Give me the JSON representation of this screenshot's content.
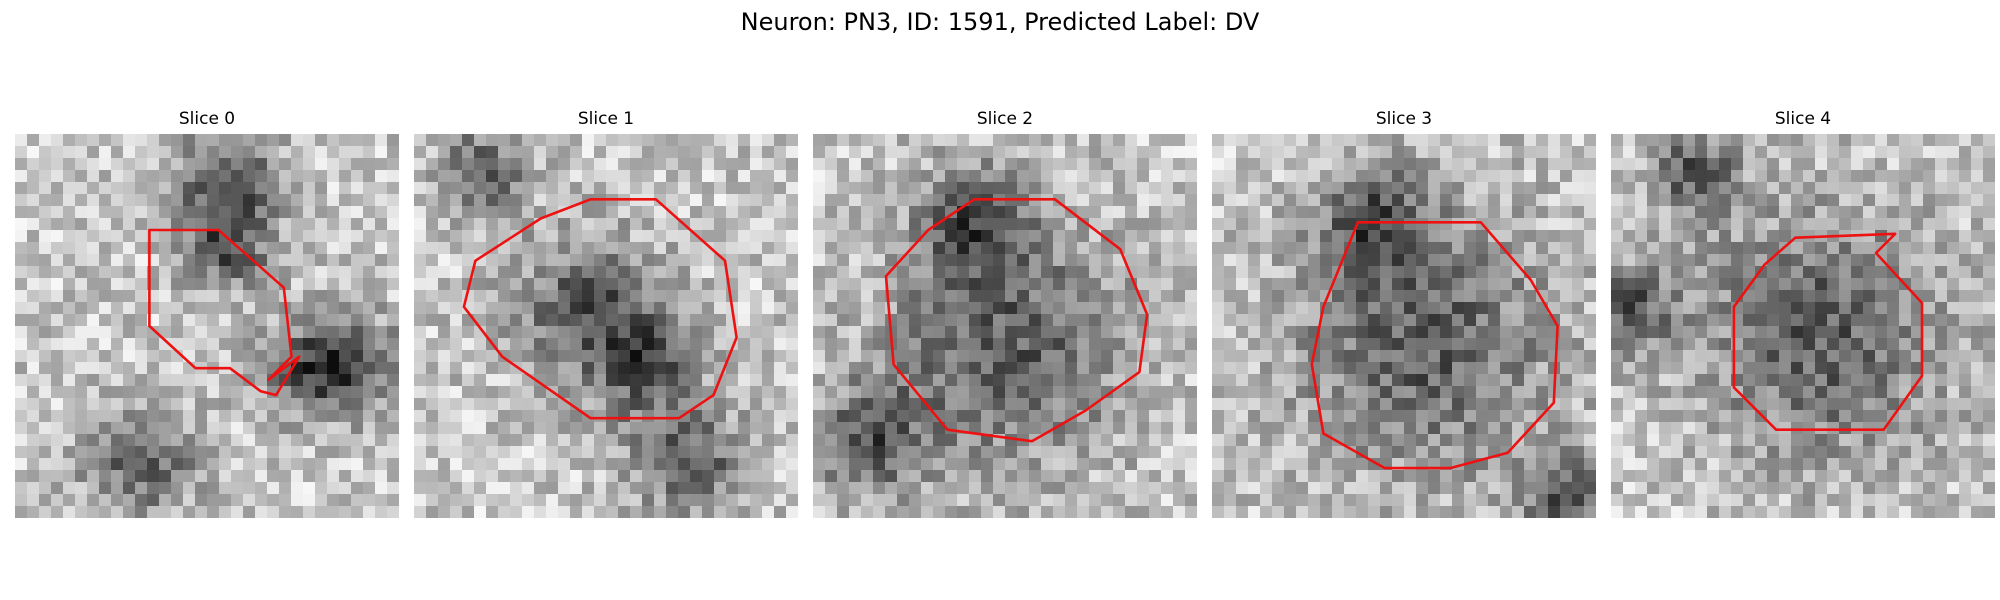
{
  "figure": {
    "title": "Neuron: PN3, ID: 1591, Predicted Label: DV"
  },
  "panels": [
    {
      "title": "Slice 0",
      "seed": 11,
      "darkness": [
        [
          0.55,
          0.12,
          0.1
        ],
        [
          0.55,
          0.3,
          0.08
        ],
        [
          0.33,
          0.85,
          0.1
        ],
        [
          0.75,
          0.62,
          0.08
        ],
        [
          0.88,
          0.6,
          0.09
        ]
      ],
      "contour": [
        [
          0.35,
          0.25
        ],
        [
          0.53,
          0.25
        ],
        [
          0.7,
          0.4
        ],
        [
          0.72,
          0.58
        ],
        [
          0.66,
          0.64
        ],
        [
          0.74,
          0.58
        ],
        [
          0.68,
          0.68
        ],
        [
          0.64,
          0.67
        ],
        [
          0.56,
          0.61
        ],
        [
          0.47,
          0.61
        ],
        [
          0.35,
          0.5
        ],
        [
          0.35,
          0.33
        ]
      ]
    },
    {
      "title": "Slice 1",
      "seed": 23,
      "darkness": [
        [
          0.45,
          0.45,
          0.13
        ],
        [
          0.6,
          0.6,
          0.1
        ],
        [
          0.72,
          0.85,
          0.1
        ],
        [
          0.18,
          0.1,
          0.08
        ]
      ],
      "contour": [
        [
          0.33,
          0.22
        ],
        [
          0.46,
          0.17
        ],
        [
          0.63,
          0.17
        ],
        [
          0.81,
          0.33
        ],
        [
          0.84,
          0.53
        ],
        [
          0.78,
          0.68
        ],
        [
          0.69,
          0.74
        ],
        [
          0.46,
          0.74
        ],
        [
          0.23,
          0.58
        ],
        [
          0.13,
          0.45
        ],
        [
          0.16,
          0.33
        ]
      ]
    },
    {
      "title": "Slice 2",
      "seed": 37,
      "darkness": [
        [
          0.42,
          0.22,
          0.1
        ],
        [
          0.5,
          0.55,
          0.22
        ],
        [
          0.15,
          0.8,
          0.1
        ]
      ],
      "contour": [
        [
          0.42,
          0.17
        ],
        [
          0.63,
          0.17
        ],
        [
          0.8,
          0.3
        ],
        [
          0.87,
          0.47
        ],
        [
          0.85,
          0.62
        ],
        [
          0.71,
          0.72
        ],
        [
          0.57,
          0.8
        ],
        [
          0.35,
          0.77
        ],
        [
          0.21,
          0.6
        ],
        [
          0.19,
          0.37
        ],
        [
          0.3,
          0.25
        ]
      ]
    },
    {
      "title": "Slice 3",
      "seed": 41,
      "darkness": [
        [
          0.55,
          0.55,
          0.23
        ],
        [
          0.42,
          0.22,
          0.1
        ],
        [
          0.92,
          0.95,
          0.08
        ]
      ],
      "contour": [
        [
          0.38,
          0.23
        ],
        [
          0.7,
          0.23
        ],
        [
          0.83,
          0.38
        ],
        [
          0.9,
          0.5
        ],
        [
          0.89,
          0.7
        ],
        [
          0.77,
          0.83
        ],
        [
          0.62,
          0.87
        ],
        [
          0.45,
          0.87
        ],
        [
          0.29,
          0.78
        ],
        [
          0.26,
          0.6
        ],
        [
          0.29,
          0.45
        ]
      ]
    },
    {
      "title": "Slice 4",
      "seed": 53,
      "darkness": [
        [
          0.55,
          0.52,
          0.22
        ],
        [
          0.05,
          0.45,
          0.08
        ],
        [
          0.22,
          0.1,
          0.08
        ]
      ],
      "contour": [
        [
          0.48,
          0.27
        ],
        [
          0.74,
          0.26
        ],
        [
          0.69,
          0.31
        ],
        [
          0.81,
          0.44
        ],
        [
          0.81,
          0.63
        ],
        [
          0.71,
          0.77
        ],
        [
          0.43,
          0.77
        ],
        [
          0.32,
          0.66
        ],
        [
          0.32,
          0.45
        ],
        [
          0.4,
          0.34
        ]
      ]
    }
  ],
  "colors": {
    "contour": "#ee1111",
    "title": "#000000"
  }
}
